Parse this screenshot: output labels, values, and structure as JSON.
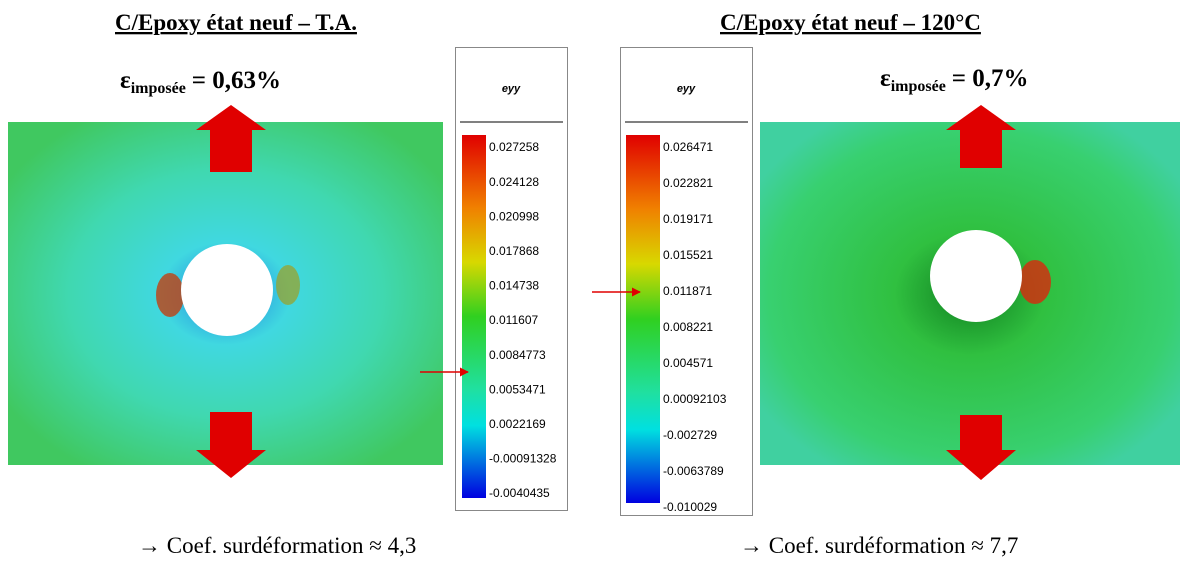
{
  "panels": [
    {
      "title": "C/Epoxy état neuf – T.A.",
      "strain_symbol": "ε",
      "strain_subscript": "imposée",
      "strain_value": "= 0,63%",
      "colorbar": {
        "title": "eyy",
        "labels": [
          "0.027258",
          "0.024128",
          "0.020998",
          "0.017868",
          "0.014738",
          "0.011607",
          "0.0084773",
          "0.0053471",
          "0.0022169",
          "-0.00091328",
          "-0.0040435"
        ]
      },
      "note": "→ Coef. surdéformation  ≈ 4,3"
    },
    {
      "title": "C/Epoxy état neuf – 120°C",
      "strain_symbol": "ε",
      "strain_subscript": "imposée",
      "strain_value": "= 0,7%",
      "colorbar": {
        "title": "eyy",
        "labels": [
          "0.026471",
          "0.022821",
          "0.019171",
          "0.015521",
          "0.011871",
          "0.008221",
          "0.004571",
          "0.00092103",
          "-0.002729",
          "-0.0063789",
          "-0.010029"
        ]
      },
      "note": "→ Coef. surdéformation  ≈ 7,7"
    }
  ]
}
